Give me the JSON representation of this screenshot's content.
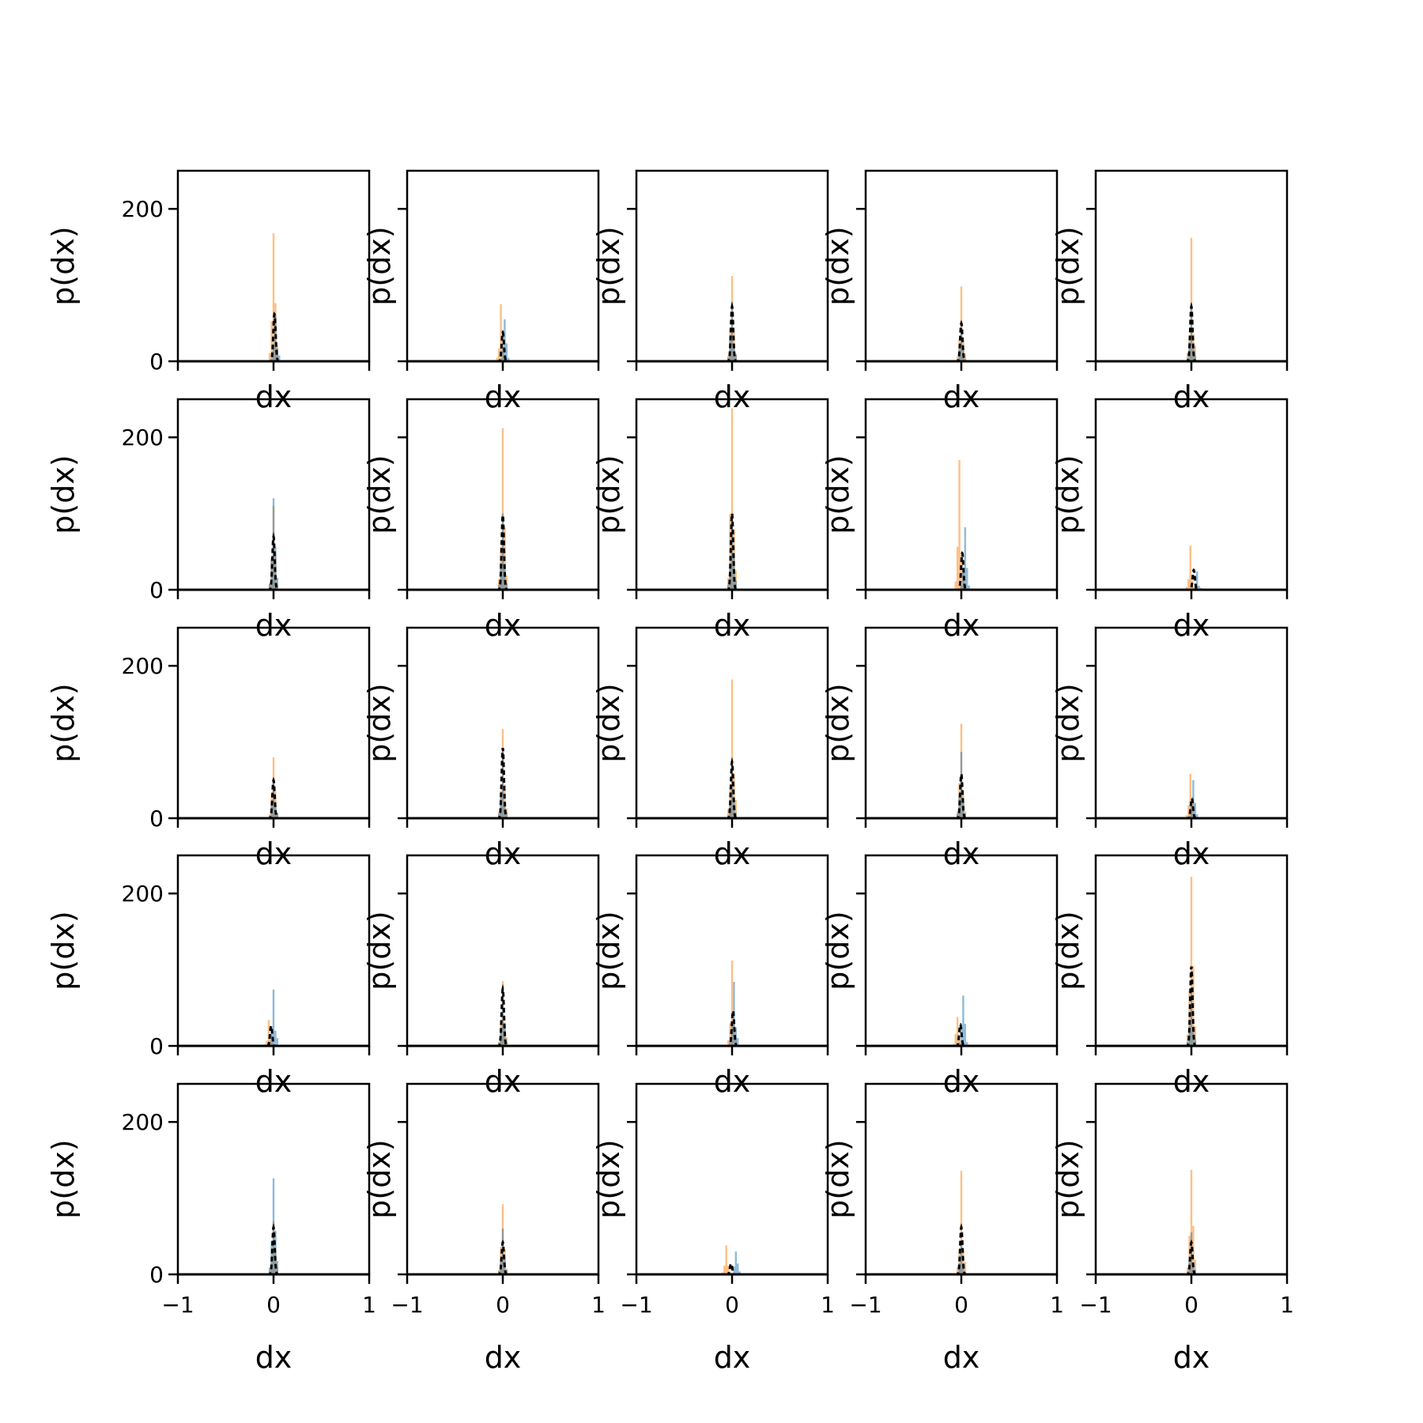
{
  "figure": {
    "rows": 5,
    "cols": 5,
    "shared_x": true,
    "shared_y": true
  },
  "colors": {
    "blue_hist": "#1f77b4",
    "orange_hist": "#ff7f0e",
    "black_line": "#000000"
  },
  "chart_data": {
    "type": "histogram-grid",
    "xlabel": "dx",
    "ylabel": "p(dx)",
    "xlim": [
      -1,
      1
    ],
    "ylim": [
      0,
      250
    ],
    "xticks": [
      -1,
      0,
      1
    ],
    "xtick_labels": [
      "−1",
      "0",
      "1"
    ],
    "yticks": [
      0,
      200
    ],
    "ytick_labels": [
      "0",
      "200"
    ],
    "series_styles": [
      {
        "key": "blue",
        "opacity": 0.5
      },
      {
        "key": "orange",
        "opacity": 0.5
      },
      {
        "key": "black",
        "style": "dashed"
      }
    ],
    "panels": [
      {
        "row": 0,
        "col": 0,
        "blue_peak": 60,
        "orange_peak": 168,
        "black_peak": 62,
        "blue_center": 0.02,
        "orange_center": 0.0
      },
      {
        "row": 0,
        "col": 1,
        "blue_peak": 55,
        "orange_peak": 75,
        "black_peak": 38,
        "blue_center": 0.02,
        "orange_center": -0.02
      },
      {
        "row": 0,
        "col": 2,
        "blue_peak": 78,
        "orange_peak": 112,
        "black_peak": 72,
        "blue_center": 0.0,
        "orange_center": 0.0
      },
      {
        "row": 0,
        "col": 3,
        "blue_peak": 45,
        "orange_peak": 98,
        "black_peak": 50,
        "blue_center": 0.0,
        "orange_center": 0.0
      },
      {
        "row": 0,
        "col": 4,
        "blue_peak": 70,
        "orange_peak": 162,
        "black_peak": 72,
        "blue_center": 0.0,
        "orange_center": 0.0
      },
      {
        "row": 1,
        "col": 0,
        "blue_peak": 120,
        "orange_peak": 110,
        "black_peak": 70,
        "blue_center": 0.0,
        "orange_center": 0.0
      },
      {
        "row": 1,
        "col": 1,
        "blue_peak": 100,
        "orange_peak": 212,
        "black_peak": 98,
        "blue_center": 0.0,
        "orange_center": 0.0
      },
      {
        "row": 1,
        "col": 2,
        "blue_peak": 100,
        "orange_peak": 238,
        "black_peak": 100,
        "blue_center": 0.0,
        "orange_center": 0.0
      },
      {
        "row": 1,
        "col": 3,
        "blue_peak": 82,
        "orange_peak": 170,
        "black_peak": 48,
        "blue_center": 0.04,
        "orange_center": -0.02
      },
      {
        "row": 1,
        "col": 4,
        "blue_peak": 24,
        "orange_peak": 58,
        "black_peak": 26,
        "blue_center": 0.06,
        "orange_center": -0.01
      },
      {
        "row": 2,
        "col": 0,
        "blue_peak": 50,
        "orange_peak": 80,
        "black_peak": 50,
        "blue_center": 0.0,
        "orange_center": 0.0
      },
      {
        "row": 2,
        "col": 1,
        "blue_peak": 92,
        "orange_peak": 117,
        "black_peak": 92,
        "blue_center": 0.0,
        "orange_center": 0.0
      },
      {
        "row": 2,
        "col": 2,
        "blue_peak": 60,
        "orange_peak": 182,
        "black_peak": 74,
        "blue_center": 0.0,
        "orange_center": 0.0
      },
      {
        "row": 2,
        "col": 3,
        "blue_peak": 87,
        "orange_peak": 124,
        "black_peak": 58,
        "blue_center": 0.0,
        "orange_center": 0.0
      },
      {
        "row": 2,
        "col": 4,
        "blue_peak": 50,
        "orange_peak": 58,
        "black_peak": 26,
        "blue_center": 0.02,
        "orange_center": -0.01
      },
      {
        "row": 3,
        "col": 0,
        "blue_peak": 74,
        "orange_peak": 34,
        "black_peak": 26,
        "blue_center": 0.0,
        "orange_center": -0.05
      },
      {
        "row": 3,
        "col": 1,
        "blue_peak": 62,
        "orange_peak": 85,
        "black_peak": 75,
        "blue_center": 0.0,
        "orange_center": 0.0
      },
      {
        "row": 3,
        "col": 2,
        "blue_peak": 84,
        "orange_peak": 112,
        "black_peak": 46,
        "blue_center": 0.02,
        "orange_center": 0.0
      },
      {
        "row": 3,
        "col": 3,
        "blue_peak": 66,
        "orange_peak": 38,
        "black_peak": 28,
        "blue_center": 0.02,
        "orange_center": -0.04
      },
      {
        "row": 3,
        "col": 4,
        "blue_peak": 76,
        "orange_peak": 222,
        "black_peak": 104,
        "blue_center": 0.0,
        "orange_center": 0.0
      },
      {
        "row": 4,
        "col": 0,
        "blue_peak": 126,
        "orange_peak": 70,
        "black_peak": 62,
        "blue_center": 0.0,
        "orange_center": 0.0
      },
      {
        "row": 4,
        "col": 1,
        "blue_peak": 60,
        "orange_peak": 92,
        "black_peak": 42,
        "blue_center": 0.0,
        "orange_center": 0.0
      },
      {
        "row": 4,
        "col": 2,
        "blue_peak": 30,
        "orange_peak": 38,
        "black_peak": 14,
        "blue_center": 0.04,
        "orange_center": -0.06
      },
      {
        "row": 4,
        "col": 3,
        "blue_peak": 43,
        "orange_peak": 136,
        "black_peak": 62,
        "blue_center": 0.0,
        "orange_center": 0.0
      },
      {
        "row": 4,
        "col": 4,
        "blue_peak": 55,
        "orange_peak": 137,
        "black_peak": 42,
        "blue_center": 0.0,
        "orange_center": 0.0
      }
    ]
  }
}
